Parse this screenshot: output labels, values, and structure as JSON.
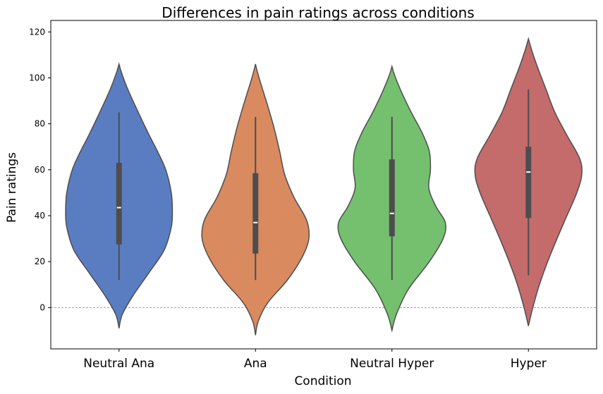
{
  "chart_data": {
    "type": "violin",
    "title": "Differences in pain ratings across conditions",
    "xlabel": "Condition",
    "ylabel": "Pain ratings",
    "ylim": [
      -18,
      125
    ],
    "yticks": [
      0,
      20,
      40,
      60,
      80,
      100,
      120
    ],
    "reference_line": {
      "y": 0,
      "style": "dashed",
      "color": "#808080"
    },
    "categories": [
      "Neutral Ana",
      "Ana",
      "Neutral Hyper",
      "Hyper"
    ],
    "series": [
      {
        "name": "Neutral Ana",
        "color": "#5a7dc2",
        "kde_min": -9,
        "kde_max": 106,
        "whisker": [
          12,
          85
        ],
        "q1": 27.5,
        "median": 43.5,
        "q3": 63,
        "density": [
          [
            -9,
            0.0
          ],
          [
            -3,
            0.06
          ],
          [
            5,
            0.25
          ],
          [
            15,
            0.54
          ],
          [
            25,
            0.82
          ],
          [
            35,
            0.95
          ],
          [
            42,
            0.97
          ],
          [
            50,
            0.95
          ],
          [
            60,
            0.85
          ],
          [
            68,
            0.7
          ],
          [
            75,
            0.55
          ],
          [
            85,
            0.35
          ],
          [
            95,
            0.16
          ],
          [
            102,
            0.05
          ],
          [
            106,
            0.0
          ]
        ]
      },
      {
        "name": "Ana",
        "color": "#d98a5f",
        "kde_min": -12,
        "kde_max": 106,
        "whisker": [
          12,
          83
        ],
        "q1": 23.5,
        "median": 37,
        "q3": 58.5,
        "density": [
          [
            -12,
            0.0
          ],
          [
            -6,
            0.05
          ],
          [
            2,
            0.22
          ],
          [
            12,
            0.58
          ],
          [
            22,
            0.85
          ],
          [
            30,
            0.97
          ],
          [
            38,
            0.93
          ],
          [
            48,
            0.7
          ],
          [
            58,
            0.53
          ],
          [
            68,
            0.44
          ],
          [
            78,
            0.34
          ],
          [
            88,
            0.22
          ],
          [
            98,
            0.09
          ],
          [
            103,
            0.03
          ],
          [
            106,
            0.0
          ]
        ]
      },
      {
        "name": "Neutral Hyper",
        "color": "#74c06e",
        "kde_min": -10,
        "kde_max": 105,
        "whisker": [
          12,
          83
        ],
        "q1": 31,
        "median": 41,
        "q3": 64.5,
        "density": [
          [
            -10,
            0.0
          ],
          [
            -3,
            0.08
          ],
          [
            8,
            0.3
          ],
          [
            20,
            0.68
          ],
          [
            30,
            0.93
          ],
          [
            37,
            0.97
          ],
          [
            44,
            0.8
          ],
          [
            52,
            0.67
          ],
          [
            60,
            0.7
          ],
          [
            68,
            0.68
          ],
          [
            76,
            0.55
          ],
          [
            85,
            0.35
          ],
          [
            94,
            0.17
          ],
          [
            101,
            0.05
          ],
          [
            105,
            0.0
          ]
        ]
      },
      {
        "name": "Hyper",
        "color": "#c46b6b",
        "kde_min": -8,
        "kde_max": 117,
        "whisker": [
          14,
          95
        ],
        "q1": 39,
        "median": 59,
        "q3": 70,
        "density": [
          [
            -8,
            0.0
          ],
          [
            0,
            0.08
          ],
          [
            10,
            0.2
          ],
          [
            20,
            0.35
          ],
          [
            30,
            0.52
          ],
          [
            40,
            0.7
          ],
          [
            50,
            0.88
          ],
          [
            58,
            0.97
          ],
          [
            65,
            0.93
          ],
          [
            75,
            0.7
          ],
          [
            85,
            0.48
          ],
          [
            95,
            0.32
          ],
          [
            105,
            0.16
          ],
          [
            112,
            0.06
          ],
          [
            117,
            0.0
          ]
        ]
      }
    ]
  }
}
